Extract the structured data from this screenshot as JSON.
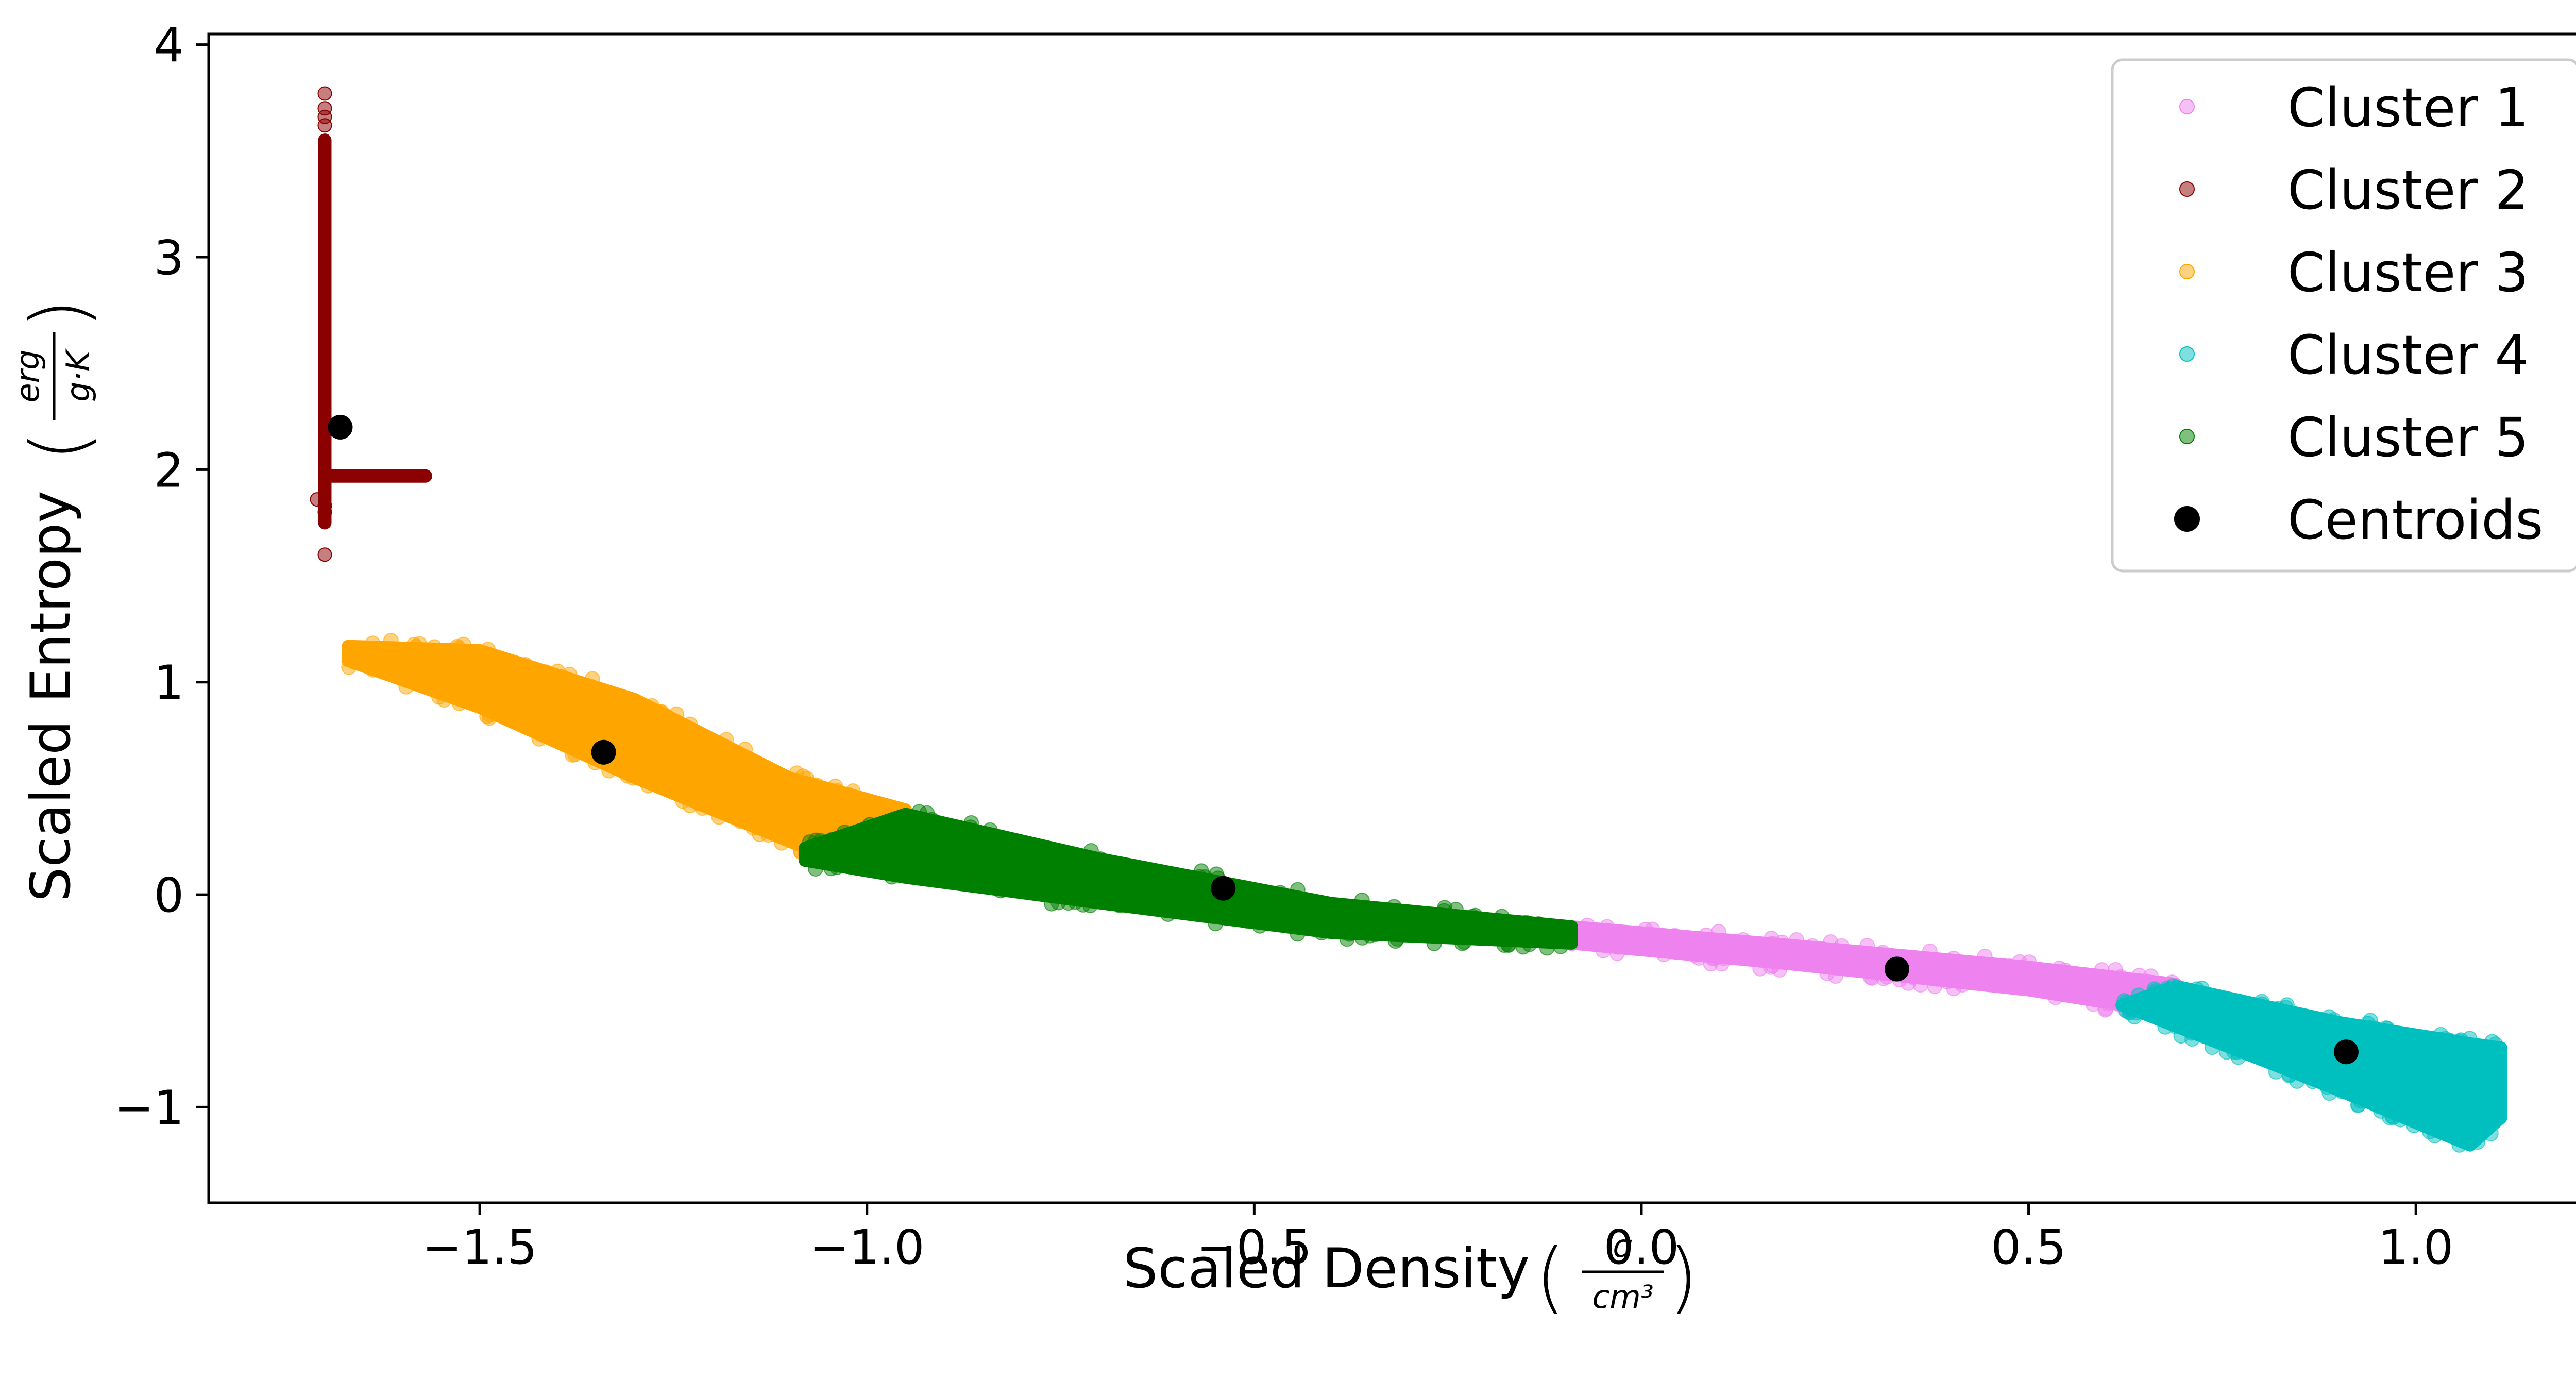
{
  "chart_data": {
    "type": "scatter",
    "title": "",
    "xlabel": "Scaled Density",
    "xlabel_unit": {
      "numerator": "g",
      "denominator": "cm³"
    },
    "ylabel": "Scaled Entropy",
    "ylabel_unit": {
      "numerator": "erg",
      "denominator": "g·K"
    },
    "xlim": [
      -1.85,
      1.25
    ],
    "ylim": [
      -1.45,
      4.05
    ],
    "xticks": [
      -1.5,
      -1.0,
      -0.5,
      0.0,
      0.5,
      1.0
    ],
    "xtick_labels": [
      "−1.5",
      "−1.0",
      "−0.5",
      "0.0",
      "0.5",
      "1.0"
    ],
    "yticks": [
      -1,
      0,
      1,
      2,
      3,
      4
    ],
    "ytick_labels": [
      "−1",
      "0",
      "1",
      "2",
      "3",
      "4"
    ],
    "grid": false,
    "legend_position": "top-right",
    "series": [
      {
        "name": "Cluster 1",
        "color": "#ee82ee",
        "region": {
          "upper": [
            [
              -0.09,
              -0.15
            ],
            [
              0.2,
              -0.24
            ],
            [
              0.5,
              -0.34
            ],
            [
              0.69,
              -0.42
            ]
          ],
          "lower": [
            [
              -0.09,
              -0.23
            ],
            [
              0.2,
              -0.33
            ],
            [
              0.5,
              -0.45
            ],
            [
              0.62,
              -0.52
            ]
          ]
        }
      },
      {
        "name": "Cluster 2",
        "color": "#8b0000",
        "region": {
          "vertical": {
            "x": -1.7,
            "y_from": 1.75,
            "y_to": 3.55
          },
          "horizontal": {
            "y": 1.97,
            "x_from": -1.7,
            "x_to": -1.57
          },
          "outliers": [
            [
              -1.7,
              3.77
            ],
            [
              -1.7,
              3.7
            ],
            [
              -1.7,
              3.62
            ],
            [
              -1.7,
              1.6
            ],
            [
              -1.7,
              1.8
            ],
            [
              -1.71,
              1.86
            ],
            [
              -1.7,
              3.66
            ],
            [
              -1.7,
              1.83
            ]
          ]
        }
      },
      {
        "name": "Cluster 3",
        "color": "#ffa500",
        "region": {
          "upper": [
            [
              -1.67,
              1.17
            ],
            [
              -1.5,
              1.15
            ],
            [
              -1.3,
              0.92
            ],
            [
              -1.1,
              0.55
            ],
            [
              -0.95,
              0.4
            ]
          ],
          "lower": [
            [
              -1.67,
              1.1
            ],
            [
              -1.5,
              0.88
            ],
            [
              -1.3,
              0.55
            ],
            [
              -1.1,
              0.25
            ],
            [
              -1.08,
              0.22
            ]
          ]
        }
      },
      {
        "name": "Cluster 4",
        "color": "#00bfbf",
        "region": {
          "upper": [
            [
              0.62,
              -0.52
            ],
            [
              0.69,
              -0.43
            ],
            [
              0.9,
              -0.6
            ],
            [
              1.07,
              -0.7
            ],
            [
              1.11,
              -0.72
            ]
          ],
          "lower": [
            [
              0.62,
              -0.52
            ],
            [
              0.9,
              -0.92
            ],
            [
              1.03,
              -1.12
            ],
            [
              1.07,
              -1.18
            ],
            [
              1.11,
              -1.05
            ]
          ]
        }
      },
      {
        "name": "Cluster 5",
        "color": "#008000",
        "region": {
          "upper": [
            [
              -1.08,
              0.22
            ],
            [
              -0.95,
              0.38
            ],
            [
              -0.7,
              0.17
            ],
            [
              -0.4,
              -0.04
            ],
            [
              -0.09,
              -0.15
            ]
          ],
          "lower": [
            [
              -1.08,
              0.16
            ],
            [
              -0.95,
              0.08
            ],
            [
              -0.7,
              -0.04
            ],
            [
              -0.4,
              -0.18
            ],
            [
              -0.09,
              -0.23
            ]
          ]
        }
      },
      {
        "name": "Centroids",
        "color": "#000000",
        "x": [
          -1.68,
          -1.34,
          -0.54,
          0.33,
          0.91
        ],
        "y": [
          2.2,
          0.67,
          0.03,
          -0.35,
          -0.74
        ]
      }
    ]
  }
}
